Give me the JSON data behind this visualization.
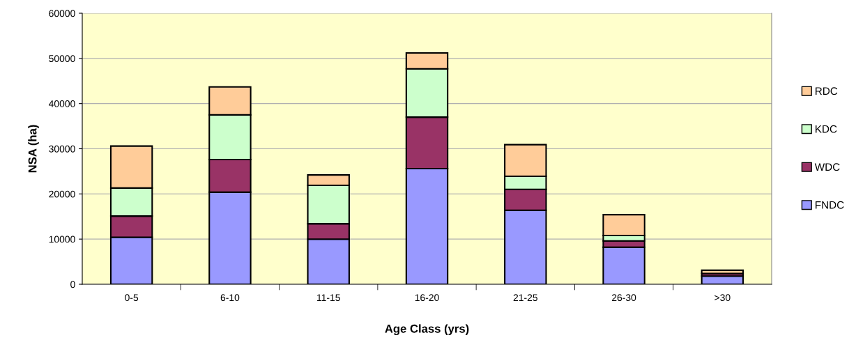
{
  "chart_data": {
    "type": "bar",
    "stacked": true,
    "xlabel": "Age Class (yrs)",
    "ylabel": "NSA (ha)",
    "categories": [
      "0-5",
      "6-10",
      "11-15",
      "16-20",
      "21-25",
      "26-30",
      ">30"
    ],
    "series": [
      {
        "name": "FNDC",
        "color": "#9999ff",
        "values": [
          10400,
          20400,
          10000,
          25600,
          16400,
          8200,
          1800
        ]
      },
      {
        "name": "WDC",
        "color": "#993366",
        "values": [
          4700,
          7200,
          3400,
          11400,
          4600,
          1400,
          600
        ]
      },
      {
        "name": "KDC",
        "color": "#ccffcc",
        "values": [
          6200,
          9900,
          8500,
          10700,
          2900,
          1200,
          null
        ]
      },
      {
        "name": "RDC",
        "color": "#ffcc99",
        "values": [
          9300,
          6200,
          2300,
          3500,
          7000,
          4600,
          700
        ]
      }
    ],
    "ylim": [
      0,
      60000
    ],
    "yticks": [
      0,
      10000,
      20000,
      30000,
      40000,
      50000,
      60000
    ],
    "grid": "y",
    "legend": "right"
  }
}
